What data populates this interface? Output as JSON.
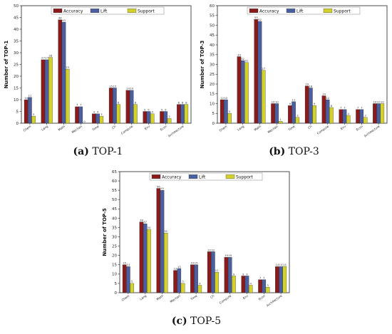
{
  "colors": {
    "accuracy": "#8b1a1a",
    "lift": "#4a5fa0",
    "support": "#d4d12a",
    "edge": "#222222"
  },
  "chart_data": [
    {
      "id": "a",
      "type": "bar",
      "caption_letter": "(a)",
      "caption_text": " TOP-1",
      "ylabel": "Number of TOP-1",
      "ylim": [
        0,
        50
      ],
      "yticks": [
        0,
        5,
        10,
        15,
        20,
        25,
        30,
        35,
        40,
        45,
        50
      ],
      "legend_position": "top",
      "categories": [
        "Chem",
        "Lang",
        "Math",
        "Mechan",
        "Time",
        "Ch",
        "Compute",
        "Env",
        "Econ",
        "Architecture"
      ],
      "series": [
        {
          "name": "Accuracy",
          "values": [
            10,
            27,
            44,
            7,
            4,
            15,
            14,
            5,
            5,
            8
          ]
        },
        {
          "name": "Lift",
          "values": [
            11,
            27,
            43,
            7,
            4,
            15,
            14,
            5,
            5,
            8
          ]
        },
        {
          "name": "Support",
          "values": [
            3,
            28,
            23,
            0,
            3,
            8,
            8,
            4,
            2,
            8
          ]
        }
      ]
    },
    {
      "id": "b",
      "type": "bar",
      "caption_letter": "(b)",
      "caption_text": " TOP-3",
      "ylabel": "Number of TOP-3",
      "ylim": [
        0,
        60
      ],
      "yticks": [
        0,
        5,
        10,
        15,
        20,
        25,
        30,
        35,
        40,
        45,
        50,
        55,
        60
      ],
      "legend_position": "top",
      "categories": [
        "Chem",
        "Lang",
        "Math",
        "Mechan",
        "Time",
        "Ch",
        "Compute",
        "Env",
        "Econ",
        "Architecture"
      ],
      "series": [
        {
          "name": "Accuracy",
          "values": [
            12,
            34,
            53,
            10,
            9,
            19,
            14,
            7,
            7,
            10
          ]
        },
        {
          "name": "Lift",
          "values": [
            12,
            32,
            52,
            10,
            11,
            18,
            12,
            7,
            7,
            10
          ]
        },
        {
          "name": "Support",
          "values": [
            5,
            31,
            27,
            1,
            3,
            9,
            8,
            4,
            3,
            10
          ]
        }
      ]
    },
    {
      "id": "c",
      "type": "bar",
      "caption_letter": "(c)",
      "caption_text": " TOP-5",
      "ylabel": "Number of TOP-5",
      "ylim": [
        0,
        65
      ],
      "yticks": [
        0,
        5,
        10,
        15,
        20,
        25,
        30,
        35,
        40,
        45,
        50,
        55,
        60,
        65
      ],
      "legend_position": "top",
      "categories": [
        "Chem",
        "Lang",
        "Math",
        "Mechan",
        "Time",
        "Ch",
        "Compute",
        "Env",
        "Econ",
        "Architecture"
      ],
      "series": [
        {
          "name": "Accuracy",
          "values": [
            15,
            38,
            56,
            12,
            15,
            22,
            19,
            9,
            7,
            14
          ]
        },
        {
          "name": "Lift",
          "values": [
            14,
            37,
            55,
            13,
            15,
            22,
            19,
            9,
            7,
            14
          ]
        },
        {
          "name": "Support",
          "values": [
            5,
            34,
            32,
            5,
            4,
            11,
            9,
            4,
            3,
            14
          ]
        }
      ]
    }
  ]
}
